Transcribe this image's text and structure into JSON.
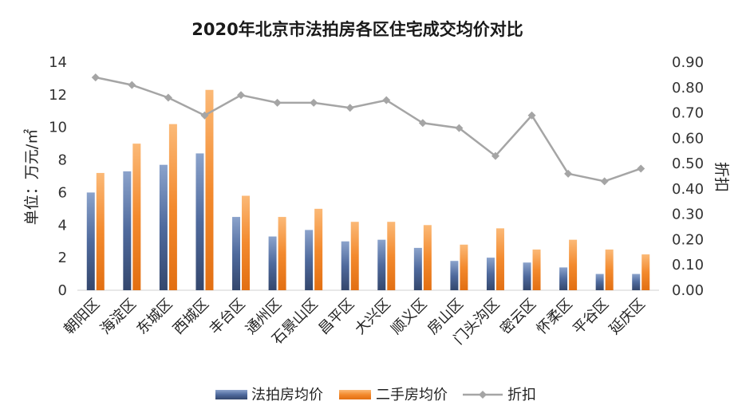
{
  "chart_data": {
    "type": "bar",
    "title": "2020年北京市法拍房各区住宅成交均价对比",
    "ylabel": "单位：万元/㎡",
    "y2label": "折扣",
    "ylim": [
      0,
      14
    ],
    "y2lim": [
      0,
      0.9
    ],
    "yticks": [
      "0",
      "2",
      "4",
      "6",
      "8",
      "10",
      "12",
      "14"
    ],
    "y2ticks": [
      "0.00",
      "0.10",
      "0.20",
      "0.30",
      "0.40",
      "0.50",
      "0.60",
      "0.70",
      "0.80",
      "0.90"
    ],
    "categories": [
      "朝阳区",
      "海淀区",
      "东城区",
      "西城区",
      "丰台区",
      "通州区",
      "石景山区",
      "昌平区",
      "大兴区",
      "顺义区",
      "房山区",
      "门头沟区",
      "密云区",
      "怀柔区",
      "平谷区",
      "延庆区"
    ],
    "series": [
      {
        "name": "法拍房均价",
        "kind": "bar",
        "axis": "left",
        "color": "#4a6393",
        "values": [
          6.0,
          7.3,
          7.7,
          8.4,
          4.5,
          3.3,
          3.7,
          3.0,
          3.1,
          2.6,
          1.8,
          2.0,
          1.7,
          1.4,
          1.0,
          1.0
        ]
      },
      {
        "name": "二手房均价",
        "kind": "bar",
        "axis": "right-none",
        "color": "#f08a2c",
        "values": [
          7.2,
          9.0,
          10.2,
          12.3,
          5.8,
          4.5,
          5.0,
          4.2,
          4.2,
          4.0,
          2.8,
          3.8,
          2.5,
          3.1,
          2.5,
          2.2
        ]
      },
      {
        "name": "折扣",
        "kind": "line",
        "axis": "right",
        "color": "#a5a5a5",
        "values": [
          0.84,
          0.81,
          0.76,
          0.69,
          0.77,
          0.74,
          0.74,
          0.72,
          0.75,
          0.66,
          0.64,
          0.53,
          0.69,
          0.46,
          0.43,
          0.48
        ]
      }
    ],
    "legend_position": "bottom",
    "grid": false
  },
  "legend": {
    "bar1": "法拍房均价",
    "bar2": "二手房均价",
    "line": "折扣"
  }
}
